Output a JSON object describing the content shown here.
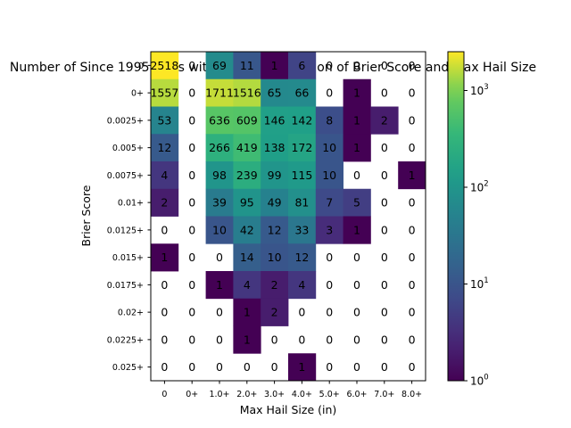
{
  "chart_data": {
    "type": "heatmap",
    "title": "Number of Since 1995 Days with each Combination of Brier Score and Max Hail Size",
    "xlabel": "Max Hail Size (in)",
    "ylabel": "Brier Score",
    "x_categories": [
      "0",
      "0+",
      "1.0+",
      "2.0+",
      "3.0+",
      "4.0+",
      "5.0+",
      "6.0+",
      "7.0+",
      "8.0+"
    ],
    "y_categories": [
      "0",
      "0+",
      "0.0025+",
      "0.005+",
      "0.0075+",
      "0.01+",
      "0.0125+",
      "0.015+",
      "0.0175+",
      "0.02+",
      "0.0225+",
      "0.025+"
    ],
    "values": [
      [
        2518,
        0,
        69,
        11,
        1,
        6,
        0,
        0,
        0,
        0
      ],
      [
        1557,
        0,
        1711,
        1516,
        65,
        66,
        0,
        1,
        0,
        0
      ],
      [
        53,
        0,
        636,
        609,
        146,
        142,
        8,
        1,
        2,
        0
      ],
      [
        12,
        0,
        266,
        419,
        138,
        172,
        10,
        1,
        0,
        0
      ],
      [
        4,
        0,
        98,
        239,
        99,
        115,
        10,
        0,
        0,
        1
      ],
      [
        2,
        0,
        39,
        95,
        49,
        81,
        7,
        5,
        0,
        0
      ],
      [
        0,
        0,
        10,
        42,
        12,
        33,
        3,
        1,
        0,
        0
      ],
      [
        1,
        0,
        0,
        14,
        10,
        12,
        0,
        0,
        0,
        0
      ],
      [
        0,
        0,
        1,
        4,
        2,
        4,
        0,
        0,
        0,
        0
      ],
      [
        0,
        0,
        0,
        1,
        2,
        0,
        0,
        0,
        0,
        0
      ],
      [
        0,
        0,
        0,
        1,
        0,
        0,
        0,
        0,
        0,
        0
      ],
      [
        0,
        0,
        0,
        0,
        0,
        1,
        0,
        0,
        0,
        0
      ]
    ],
    "colorbar": {
      "scale": "log",
      "range": [
        1,
        2518
      ],
      "ticks": [
        {
          "value": 1,
          "base": "10",
          "exp": "0"
        },
        {
          "value": 10,
          "base": "10",
          "exp": "1"
        },
        {
          "value": 100,
          "base": "10",
          "exp": "2"
        },
        {
          "value": 1000,
          "base": "10",
          "exp": "3"
        }
      ]
    },
    "colormap": "viridis",
    "zero_cells": "blank",
    "grid": false,
    "legend": "colorbar-right"
  }
}
